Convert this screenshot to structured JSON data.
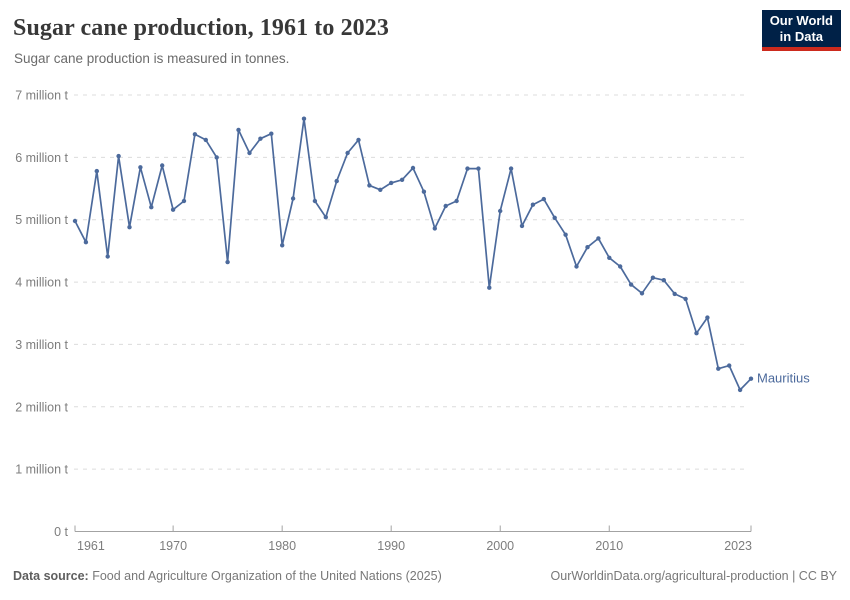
{
  "header": {
    "title": "Sugar cane production, 1961 to 2023",
    "subtitle": "Sugar cane production is measured in tonnes.",
    "logo": {
      "line1": "Our World",
      "line2": "in Data"
    }
  },
  "chart_data": {
    "type": "line",
    "title": "Sugar cane production, 1961 to 2023",
    "unit": "million tonnes",
    "xlabel": "",
    "ylabel": "",
    "ylim": [
      0,
      7
    ],
    "xlim": [
      1961,
      2023
    ],
    "grid": "horizontal-dashed",
    "legend_position": "end-of-line",
    "x": [
      1961,
      1962,
      1963,
      1964,
      1965,
      1966,
      1967,
      1968,
      1969,
      1970,
      1971,
      1972,
      1973,
      1974,
      1975,
      1976,
      1977,
      1978,
      1979,
      1980,
      1981,
      1982,
      1983,
      1984,
      1985,
      1986,
      1987,
      1988,
      1989,
      1990,
      1991,
      1992,
      1993,
      1994,
      1995,
      1996,
      1997,
      1998,
      1999,
      2000,
      2001,
      2002,
      2003,
      2004,
      2005,
      2006,
      2007,
      2008,
      2009,
      2010,
      2011,
      2012,
      2013,
      2014,
      2015,
      2016,
      2017,
      2018,
      2019,
      2020,
      2021,
      2022,
      2023
    ],
    "series": [
      {
        "name": "Mauritius",
        "color": "#4c6a9c",
        "values": [
          4.98,
          4.64,
          5.78,
          4.41,
          6.02,
          4.88,
          5.84,
          5.2,
          5.87,
          5.16,
          5.3,
          6.37,
          6.28,
          6.0,
          4.32,
          6.44,
          6.07,
          6.3,
          6.38,
          4.59,
          5.34,
          6.62,
          5.3,
          5.04,
          5.62,
          6.07,
          6.28,
          5.55,
          5.48,
          5.59,
          5.64,
          5.83,
          5.45,
          4.86,
          5.22,
          5.3,
          5.82,
          5.82,
          3.91,
          5.14,
          5.82,
          4.9,
          5.24,
          5.33,
          5.03,
          4.76,
          4.25,
          4.56,
          4.7,
          4.39,
          4.25,
          3.96,
          3.82,
          4.07,
          4.03,
          3.81,
          3.73,
          3.18,
          3.43,
          2.61,
          2.66,
          2.27,
          2.45
        ]
      }
    ],
    "y_axis": [
      {
        "v": 0,
        "label": "0 t"
      },
      {
        "v": 1,
        "label": "1 million t"
      },
      {
        "v": 2,
        "label": "2 million t"
      },
      {
        "v": 3,
        "label": "3 million t"
      },
      {
        "v": 4,
        "label": "4 million t"
      },
      {
        "v": 5,
        "label": "5 million t"
      },
      {
        "v": 6,
        "label": "6 million t"
      },
      {
        "v": 7,
        "label": "7 million t"
      }
    ],
    "x_ticks": [
      1961,
      1970,
      1980,
      1990,
      2000,
      2010,
      2023
    ]
  },
  "footer": {
    "source_label": "Data source:",
    "source_text": "Food and Agriculture Organization of the United Nations (2025)",
    "credit": "OurWorldinData.org/agricultural-production | CC BY"
  },
  "colors": {
    "accent": "#4c6a9c",
    "grid": "#dcdcdc",
    "axis": "#a3a3a3",
    "logo_bg": "#002147",
    "logo_accent": "#cc2a1d"
  }
}
